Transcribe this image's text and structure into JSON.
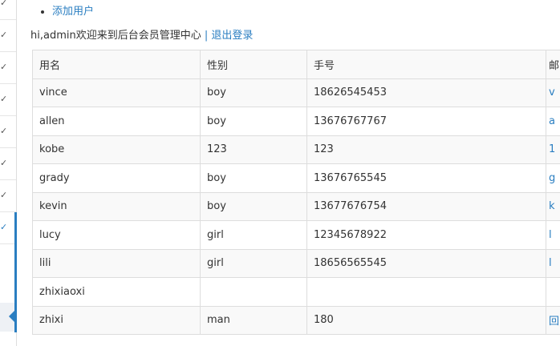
{
  "sidebar": {
    "items": [
      "✓",
      "✓",
      "✓",
      "✓",
      "✓",
      "✓",
      "✓",
      "✓"
    ]
  },
  "nav": {
    "add_user": "添加用户"
  },
  "welcome": {
    "text": "hi,admin欢迎来到后台会员管理中心",
    "separator": "|",
    "logout": "退出登录"
  },
  "table": {
    "headers": [
      "用名",
      "性别",
      "手号",
      "邮"
    ],
    "rows": [
      [
        "vince",
        "boy",
        "18626545453",
        "v"
      ],
      [
        "allen",
        "boy",
        "13676767767",
        "a"
      ],
      [
        "kobe",
        "123",
        "123",
        "1"
      ],
      [
        "grady",
        "boy",
        "13676765545",
        "g"
      ],
      [
        "kevin",
        "boy",
        "13677676754",
        "k"
      ],
      [
        "lucy",
        "girl",
        "12345678922",
        "l"
      ],
      [
        "lili",
        "girl",
        "18656565545",
        "l"
      ],
      [
        "zhixiaoxi",
        "",
        "",
        ""
      ],
      [
        "zhixi",
        "man",
        "180",
        "回"
      ]
    ]
  },
  "colors": {
    "accent": "#2a7ec1"
  }
}
